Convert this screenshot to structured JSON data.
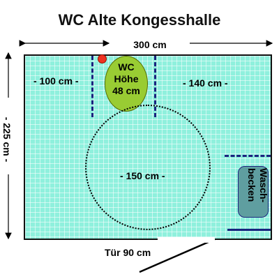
{
  "title": "WC Alte Kongesshalle",
  "dimensions": {
    "width": "300 cm",
    "height": "- 225 cm -",
    "left_zone": "- 100 cm -",
    "right_zone": "- 140 cm -",
    "turning_circle": "- 150 cm -",
    "door": "Tür 90 cm"
  },
  "wc": {
    "line1": "WC",
    "line2": "Höhe",
    "line3": "48 cm"
  },
  "sink": {
    "line1": "Wasch-",
    "line2": "becken"
  },
  "colors": {
    "floor": "#8ff0dd",
    "wc": "#99cc33",
    "rail": "#1a237e",
    "sink": "#5f9ea0",
    "marker": "#ee3322"
  }
}
